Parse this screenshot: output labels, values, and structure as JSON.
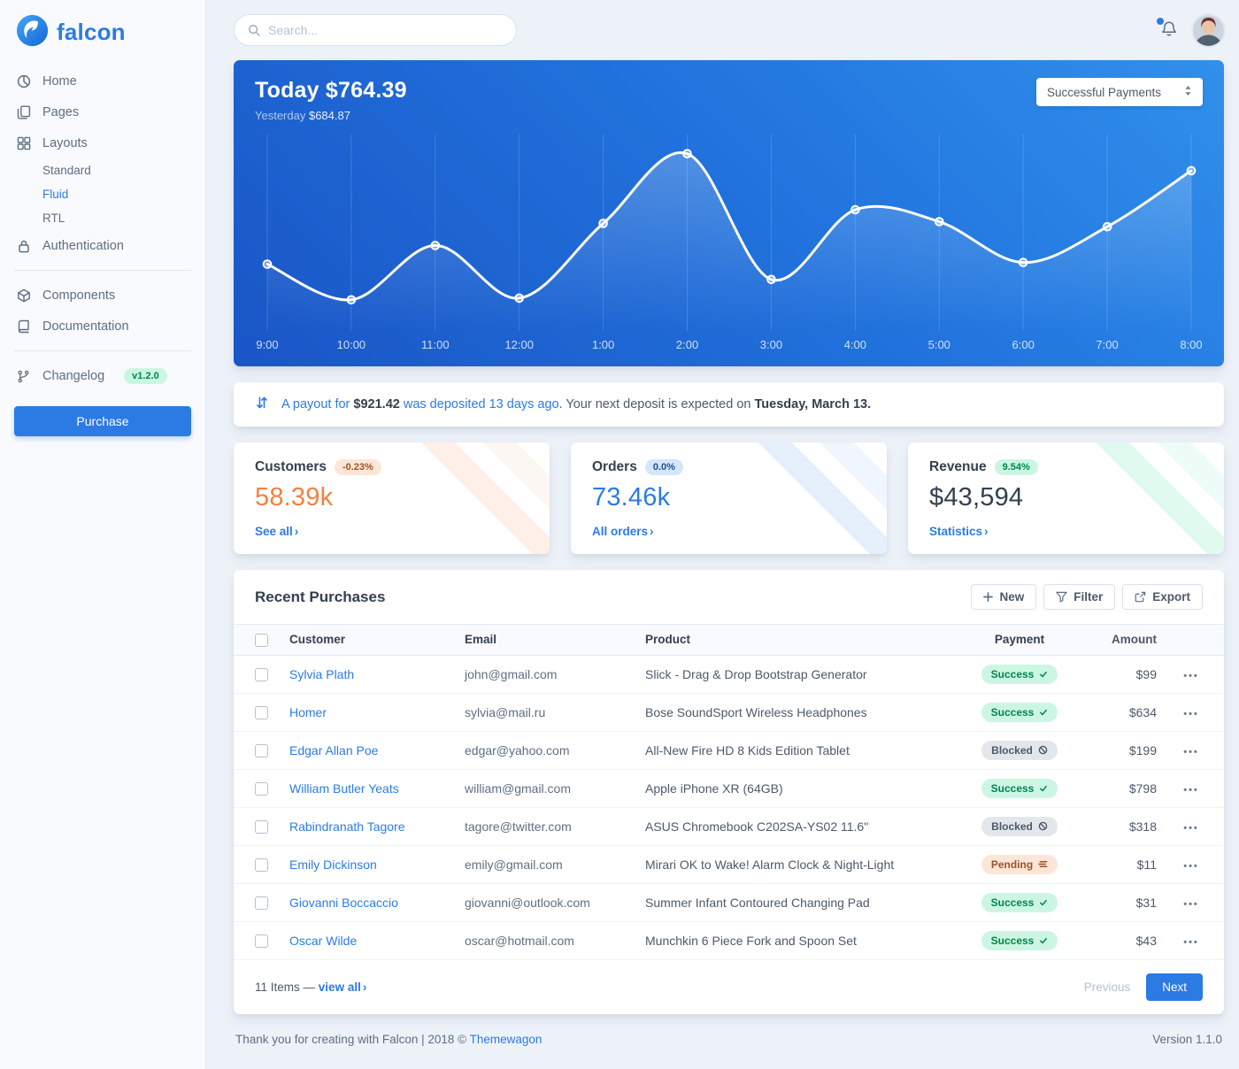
{
  "brand": {
    "name": "falcon",
    "color": "#2c7be5"
  },
  "topbar": {
    "search_placeholder": "Search...",
    "icons": [
      "search-icon",
      "bell-icon",
      "avatar"
    ]
  },
  "sidebar": {
    "items": [
      {
        "label": "Home",
        "icon": "pie-chart-icon"
      },
      {
        "label": "Pages",
        "icon": "pages-icon"
      },
      {
        "label": "Layouts",
        "icon": "grid-icon",
        "children": [
          "Standard",
          "Fluid",
          "RTL"
        ],
        "active_child": "Fluid"
      },
      {
        "label": "Authentication",
        "icon": "lock-icon",
        "divider_after": true
      },
      {
        "label": "Components",
        "icon": "components-icon"
      },
      {
        "label": "Documentation",
        "icon": "book-icon",
        "divider_after": true
      },
      {
        "label": "Changelog",
        "icon": "code-branch-icon",
        "badge": "v1.2.0"
      }
    ],
    "purchase_label": "Purchase"
  },
  "hero": {
    "today_label": "Today",
    "today_value": "$764.39",
    "yesterday_label": "Yesterday",
    "yesterday_value": "$684.87",
    "dropdown_value": "Successful Payments",
    "dropdown_icon": "sort-icon"
  },
  "chart_data": {
    "type": "line",
    "title": "Today $764.39",
    "subtitle": "Yesterday $684.87",
    "x": [
      "9:00",
      "10:00",
      "11:00",
      "12:00",
      "1:00",
      "2:00",
      "3:00",
      "4:00",
      "5:00",
      "6:00",
      "7:00",
      "8:00"
    ],
    "series": [
      {
        "name": "Successful Payments",
        "values": [
          31,
          10,
          42,
          11,
          55,
          96,
          22,
          63,
          56,
          32,
          53,
          86
        ]
      }
    ],
    "ylim": [
      0,
      100
    ],
    "grid": "vertical-only",
    "legend_position": "none",
    "line_color": "#ffffff",
    "background": "blue-gradient"
  },
  "alert": {
    "icon": "exchange-icon",
    "link_prefix": "A payout for ",
    "link_amount": "$921.42",
    "link_suffix": " was deposited 13 days ago",
    "rest": ". Your next deposit is expected on ",
    "date_bold": "Tuesday, March 13."
  },
  "stats": [
    {
      "title": "Customers",
      "badge": "-0.23%",
      "badge_style": "warning",
      "value": "58.39k",
      "value_color": "#f5803e",
      "link": "See all",
      "accent": "#f5803e"
    },
    {
      "title": "Orders",
      "badge": "0.0%",
      "badge_style": "primary",
      "value": "73.46k",
      "value_color": "#2c7be5",
      "link": "All orders",
      "accent": "#2c7be5"
    },
    {
      "title": "Revenue",
      "badge": "9.54%",
      "badge_style": "success",
      "value": "$43,594",
      "value_color": "#344050",
      "link": "Statistics",
      "accent": "#00d27a"
    }
  ],
  "table": {
    "title": "Recent Purchases",
    "buttons": [
      {
        "label": "New",
        "icon": "plus-icon"
      },
      {
        "label": "Filter",
        "icon": "filter-icon"
      },
      {
        "label": "Export",
        "icon": "export-icon"
      }
    ],
    "columns": [
      "Customer",
      "Email",
      "Product",
      "Payment",
      "Amount"
    ],
    "rows": [
      {
        "customer": "Sylvia Plath",
        "email": "john@gmail.com",
        "product": "Slick - Drag & Drop Bootstrap Generator",
        "payment": "Success",
        "amount": "$99"
      },
      {
        "customer": "Homer",
        "email": "sylvia@mail.ru",
        "product": "Bose SoundSport Wireless Headphones",
        "payment": "Success",
        "amount": "$634"
      },
      {
        "customer": "Edgar Allan Poe",
        "email": "edgar@yahoo.com",
        "product": "All-New Fire HD 8 Kids Edition Tablet",
        "payment": "Blocked",
        "amount": "$199"
      },
      {
        "customer": "William Butler Yeats",
        "email": "william@gmail.com",
        "product": "Apple iPhone XR (64GB)",
        "payment": "Success",
        "amount": "$798"
      },
      {
        "customer": "Rabindranath Tagore",
        "email": "tagore@twitter.com",
        "product": "ASUS Chromebook C202SA-YS02 11.6\"",
        "payment": "Blocked",
        "amount": "$318"
      },
      {
        "customer": "Emily Dickinson",
        "email": "emily@gmail.com",
        "product": "Mirari OK to Wake! Alarm Clock & Night-Light",
        "payment": "Pending",
        "amount": "$11"
      },
      {
        "customer": "Giovanni Boccaccio",
        "email": "giovanni@outlook.com",
        "product": "Summer Infant Contoured Changing Pad",
        "payment": "Success",
        "amount": "$31"
      },
      {
        "customer": "Oscar Wilde",
        "email": "oscar@hotmail.com",
        "product": "Munchkin 6 Piece Fork and Spoon Set",
        "payment": "Success",
        "amount": "$43"
      }
    ],
    "payment_styles": {
      "Success": {
        "style": "success",
        "icon": "check-icon"
      },
      "Blocked": {
        "style": "blocked",
        "icon": "ban-icon"
      },
      "Pending": {
        "style": "pending",
        "icon": "stream-icon"
      }
    },
    "footer": {
      "items_text": "11 Items —",
      "view_all": "view all",
      "previous": "Previous",
      "next": "Next"
    }
  },
  "footer": {
    "left_prefix": "Thank you for creating with Falcon | 2018 © ",
    "brand_link": "Themewagon",
    "version": "Version 1.1.0"
  },
  "colors": {
    "primary": "#2c7be5",
    "warning": "#f5803e",
    "success": "#00d27a",
    "page_background": "#edf2f9",
    "sidebar_background": "#f9fafd"
  }
}
